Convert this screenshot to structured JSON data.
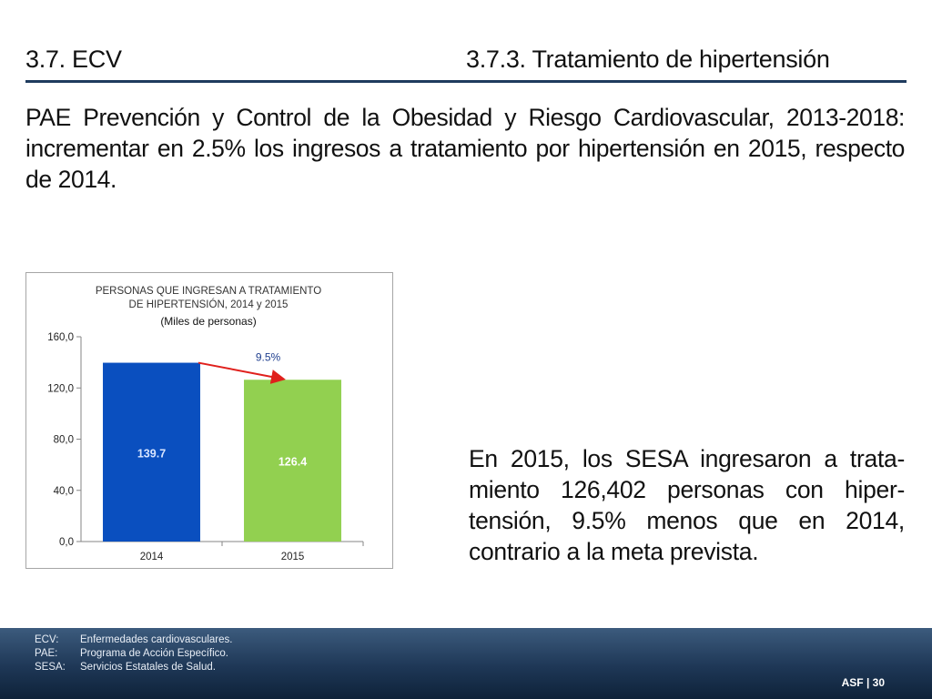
{
  "header": {
    "section": "3.7. ECV",
    "subsection": "3.7.3. Tratamiento de hipertensión"
  },
  "intro_text": "PAE Prevención y Control de la Obesidad y Riesgo Cardiovascular, 2013-2018: incrementar en 2.5% los ingresos a tratamiento por hipertensión en 2015, respecto de 2014.",
  "conclusion_text": "En 2015, los SESA ingresaron a trata-miento 126,402 personas con hiper-tensión, 9.5% menos que en 2014, contrario a la meta prevista.",
  "colors": {
    "bar_2014": "#0a4fbf",
    "bar_2015": "#92d050",
    "arrow": "#e0201c",
    "footer": "#1e3756"
  },
  "chart_data": {
    "type": "bar",
    "title_line1": "PERSONAS QUE INGRESAN A  TRATAMIENTO",
    "title_line2": "DE HIPERTENSIÓN, 2014 y 2015",
    "subtitle": "(Miles de personas)",
    "categories": [
      "2014",
      "2015"
    ],
    "values": [
      139.7,
      126.4
    ],
    "value_labels": [
      "139.7",
      "126.4"
    ],
    "ylim": [
      0,
      160
    ],
    "yticks": [
      0,
      40,
      80,
      120,
      160
    ],
    "ytick_labels": [
      "0,0",
      "40,0",
      "80,0",
      "120,0",
      "160,0"
    ],
    "change_annotation": "9.5%",
    "grid": false,
    "legend": "none"
  },
  "footnotes": [
    {
      "abbr": "ECV:",
      "text": "Enfermedades cardiovasculares."
    },
    {
      "abbr": "PAE:",
      "text": "Programa de Acción Específico."
    },
    {
      "abbr": "SESA:",
      "text": "Servicios Estatales de Salud."
    }
  ],
  "page_number": "ASF | 30"
}
